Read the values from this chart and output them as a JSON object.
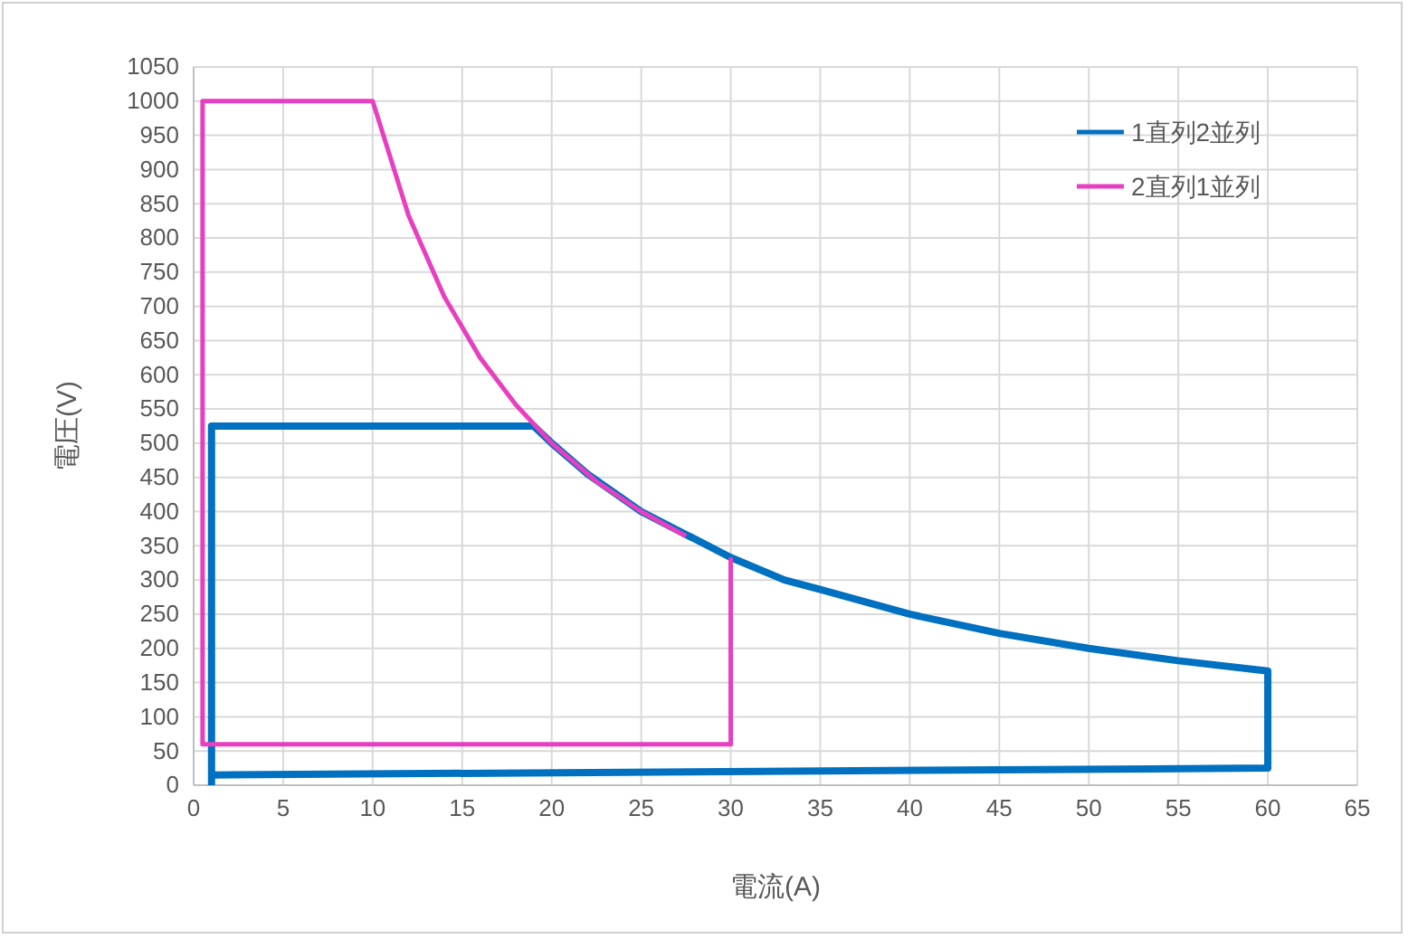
{
  "chart_data": {
    "type": "line",
    "xlabel": "電流(A)",
    "ylabel": "電圧(V)",
    "xlim": [
      0,
      65
    ],
    "xticks": [
      0,
      5,
      10,
      15,
      20,
      25,
      30,
      35,
      40,
      45,
      50,
      55,
      60,
      65
    ],
    "ylim": [
      0,
      1050
    ],
    "yticks": [
      0,
      50,
      100,
      150,
      200,
      250,
      300,
      350,
      400,
      450,
      500,
      550,
      600,
      650,
      700,
      750,
      800,
      850,
      900,
      950,
      1000,
      1050
    ],
    "grid": true,
    "legend": "top right",
    "marker": "none",
    "line_style": "solid",
    "series": [
      {
        "name": "1直列2並列",
        "color": "#0070c0",
        "x": [
          1,
          1,
          19,
          20,
          22,
          25,
          30,
          33,
          35,
          40,
          45,
          50,
          55,
          60,
          60,
          1
        ],
        "values": [
          0,
          525,
          525,
          500,
          455,
          400,
          333,
          300,
          286,
          250,
          222,
          200,
          182,
          167,
          25,
          15
        ]
      },
      {
        "name": "2直列1並列",
        "color": "#e83fc0",
        "x": [
          30,
          30,
          0.5,
          0.5,
          10,
          12,
          14,
          16,
          18,
          20,
          22.5,
          25,
          27.5
        ],
        "values": [
          333,
          60,
          60,
          1000,
          1000,
          833,
          714,
          625,
          556,
          500,
          444,
          400,
          364
        ]
      }
    ]
  }
}
